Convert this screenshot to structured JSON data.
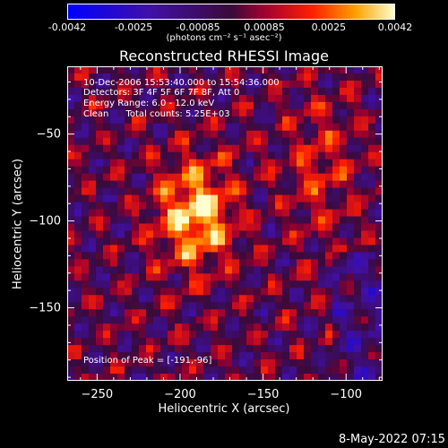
{
  "chart_data": {
    "type": "heatmap",
    "title": "Reconstructed RHESSI Image",
    "xlabel": "Heliocentric X (arcsec)",
    "ylabel": "Heliocentric Y (arcsec)",
    "xlim": [
      -268,
      -78
    ],
    "ylim": [
      -192,
      -11
    ],
    "xticks": [
      -250,
      -200,
      -150,
      -100
    ],
    "yticks": [
      -50,
      -100,
      -150
    ],
    "colorbar": {
      "range": [
        -0.0042,
        0.0042
      ],
      "ticks": [
        "-0.0042",
        "-0.0025",
        "-0.00085",
        "0.00085",
        "0.0025",
        "0.0042"
      ],
      "unit": "(photons cm⁻² s⁻¹ asec⁻²)"
    },
    "info_lines": [
      "10-Dec-2006 15:53:40.000 to 15:54:36.000",
      "Detectors: 3F 4F 5F 6F 7F 8F, Att 0",
      "Energy Range: 6.0 - 12.0 keV",
      "Clean      Total counts: 5.25E+03"
    ],
    "peak_text": "Position of Peak = [-191,-96]",
    "peak": [
      -191,
      -96
    ]
  },
  "timestamp": "8-May-2022 07:15"
}
